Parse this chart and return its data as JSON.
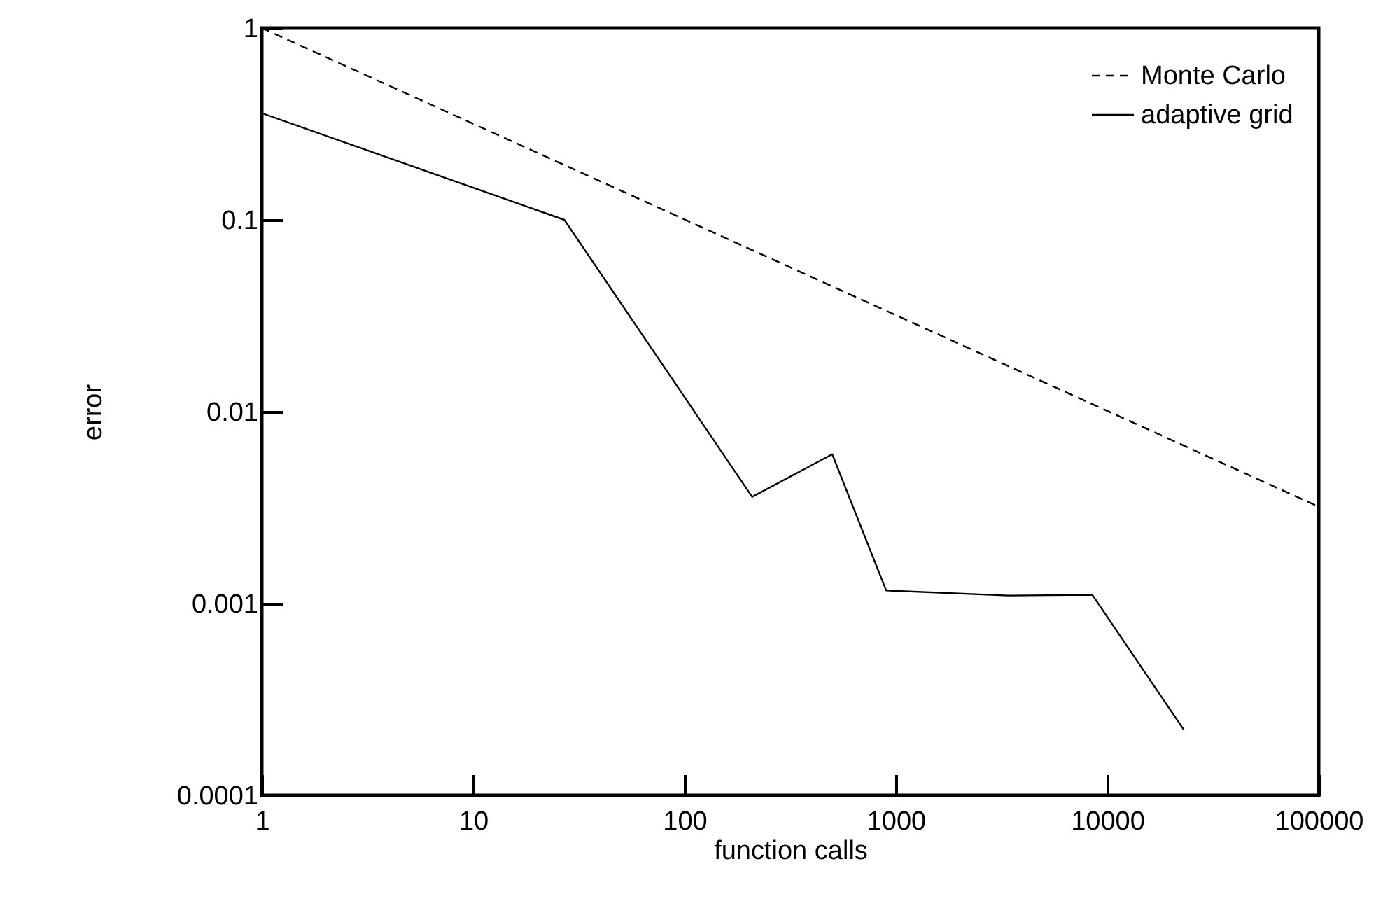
{
  "chart_data": {
    "type": "line",
    "xlabel": "function calls",
    "ylabel": "error",
    "log": "xy",
    "legend": "top right",
    "xlim": [
      1,
      100000
    ],
    "xticks": [
      1,
      10,
      100,
      1000,
      10000,
      100000
    ],
    "ylim": [
      0.0001,
      1
    ],
    "yticks": [
      0.0001,
      0.001,
      0.01,
      0.1,
      1
    ],
    "series": [
      {
        "name": "Monte Carlo",
        "color": "#000000",
        "line_style": "dashed",
        "x": [
          1,
          100000
        ],
        "values": [
          1,
          0.0032
        ]
      },
      {
        "name": "adaptive grid",
        "color": "#000000",
        "line_style": "solid",
        "x": [
          1,
          27,
          209,
          500,
          900,
          3400,
          8500,
          23000
        ],
        "values": [
          0.36,
          0.1,
          0.0036,
          0.006,
          0.00117,
          0.0011,
          0.00111,
          0.00022
        ]
      }
    ]
  }
}
